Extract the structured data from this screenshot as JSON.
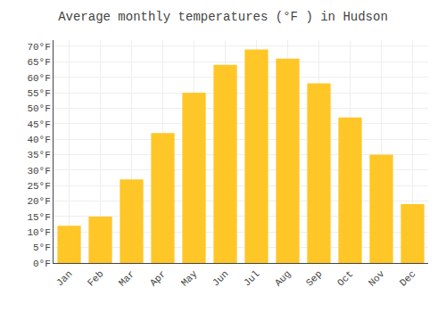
{
  "chart_data": {
    "type": "bar",
    "title": "Average monthly temperatures (°F ) in Hudson",
    "categories": [
      "Jan",
      "Feb",
      "Mar",
      "Apr",
      "May",
      "Jun",
      "Jul",
      "Aug",
      "Sep",
      "Oct",
      "Nov",
      "Dec"
    ],
    "values": [
      12,
      15,
      27,
      42,
      55,
      64,
      69,
      66,
      58,
      47,
      35,
      19
    ],
    "color": "#FFC627",
    "ylim": [
      0,
      72
    ],
    "yticks": [
      {
        "value": 0,
        "label": "0°F"
      },
      {
        "value": 5,
        "label": "5°F"
      },
      {
        "value": 10,
        "label": "10°F"
      },
      {
        "value": 15,
        "label": "15°F"
      },
      {
        "value": 20,
        "label": "20°F"
      },
      {
        "value": 25,
        "label": "25°F"
      },
      {
        "value": 30,
        "label": "30°F"
      },
      {
        "value": 35,
        "label": "35°F"
      },
      {
        "value": 40,
        "label": "40°F"
      },
      {
        "value": 45,
        "label": "45°F"
      },
      {
        "value": 50,
        "label": "50°F"
      },
      {
        "value": 55,
        "label": "55°F"
      },
      {
        "value": 60,
        "label": "60°F"
      },
      {
        "value": 65,
        "label": "65°F"
      },
      {
        "value": 70,
        "label": "70°F"
      }
    ],
    "grid": true
  }
}
